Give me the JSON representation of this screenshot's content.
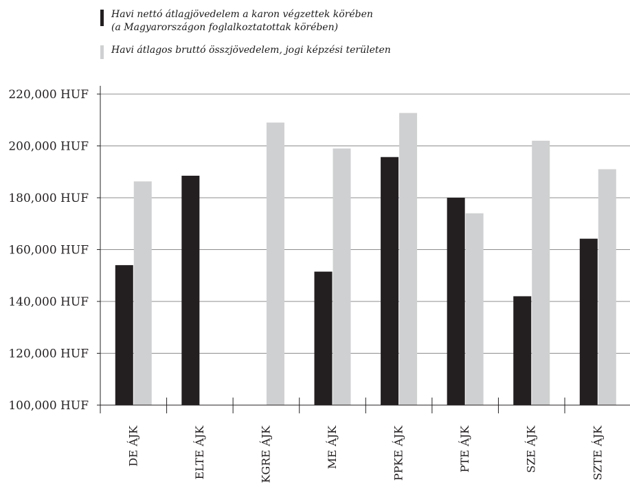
{
  "chart_data": {
    "type": "bar",
    "categories": [
      "DE ÁJK",
      "ELTE ÁJK",
      "KGRE ÁJK",
      "ME ÁJK",
      "PPKE ÁJK",
      "PTE ÁJK",
      "SZE ÁJK",
      "SZTE ÁJK"
    ],
    "series": [
      {
        "name": "Havi nettó átlagjövedelem a karon végzettek körében (a Magyarországon foglalkoztatottak körében)",
        "name_lines": [
          "Havi nettó átlagjövedelem a karon végzettek körében",
          "(a Magyarországon foglalkoztatottak körében)"
        ],
        "color": "#231f20",
        "values": [
          154000,
          188500,
          null,
          151500,
          195700,
          180000,
          142000,
          164200
        ]
      },
      {
        "name": "Havi átlagos bruttó összjövedelem, jogi képzési területen",
        "name_lines": [
          "Havi átlagos bruttó összjövedelem, jogi képzési területen"
        ],
        "color": "#cfd0d1",
        "values": [
          186300,
          null,
          209000,
          199000,
          212700,
          174000,
          202000,
          191000
        ]
      }
    ],
    "ylim": [
      100000,
      220000
    ],
    "yticks": [
      100000,
      120000,
      140000,
      160000,
      180000,
      200000,
      220000
    ],
    "ytick_labels": [
      "100,000 HUF",
      "120,000 HUF",
      "140,000 HUF",
      "160,000 HUF",
      "180,000 HUF",
      "200,000 HUF",
      "220,000 HUF"
    ],
    "grid": true,
    "legend_position": "top-left"
  }
}
